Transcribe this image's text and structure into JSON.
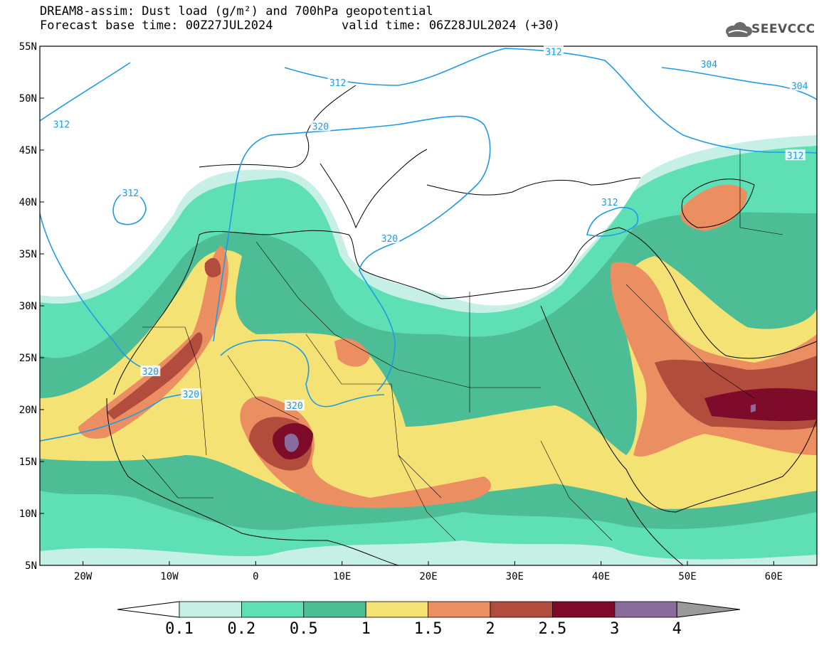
{
  "title": {
    "line1": "DREAM8-assim: Dust load (g/m²) and 700hPa geopotential",
    "line2": "Forecast base time: 00Z27JUL2024",
    "valid": "valid time: 06Z28JUL2024 (+30)"
  },
  "logo": {
    "text": "SEEVCCC",
    "icon": "cloud-logo-icon"
  },
  "axes": {
    "lat_labels": [
      "55N",
      "50N",
      "45N",
      "40N",
      "35N",
      "30N",
      "25N",
      "20N",
      "15N",
      "10N",
      "5N"
    ],
    "lon_labels": [
      "20W",
      "10W",
      "0",
      "10E",
      "20E",
      "30E",
      "40E",
      "50E",
      "60E"
    ],
    "lat_range": [
      5,
      55
    ],
    "lon_range": [
      -25,
      65
    ]
  },
  "contour_labels": [
    {
      "text": "312",
      "lon": -22.5,
      "lat": 47.5
    },
    {
      "text": "312",
      "lon": 9.5,
      "lat": 51.5
    },
    {
      "text": "312",
      "lon": 34.5,
      "lat": 54.5
    },
    {
      "text": "304",
      "lon": 52.5,
      "lat": 53.3
    },
    {
      "text": "304",
      "lon": 63.0,
      "lat": 51.2
    },
    {
      "text": "320",
      "lon": 7.5,
      "lat": 47.3
    },
    {
      "text": "312",
      "lon": -14.5,
      "lat": 40.9
    },
    {
      "text": "312",
      "lon": 41.0,
      "lat": 40.0
    },
    {
      "text": "312",
      "lon": 62.5,
      "lat": 44.5
    },
    {
      "text": "320",
      "lon": 15.5,
      "lat": 36.5
    },
    {
      "text": "320",
      "lon": -12.2,
      "lat": 23.7
    },
    {
      "text": "320",
      "lon": -7.5,
      "lat": 21.5
    },
    {
      "text": "320",
      "lon": 4.5,
      "lat": 20.4
    }
  ],
  "colorbar": {
    "labels": [
      "0.1",
      "0.2",
      "0.5",
      "1",
      "1.5",
      "2",
      "2.5",
      "3",
      "4"
    ],
    "colors": [
      "#c6efe6",
      "#5fe0b4",
      "#4dbd95",
      "#f4e275",
      "#eb8f63",
      "#b24c3c",
      "#7d0b29",
      "#8a6c9c"
    ],
    "under_color": "#ffffff",
    "over_color": "#9a9a9a",
    "unit": "g/m²"
  },
  "legend_colors": {
    "contour": "#1f9ae6",
    "coast": "#000000"
  }
}
